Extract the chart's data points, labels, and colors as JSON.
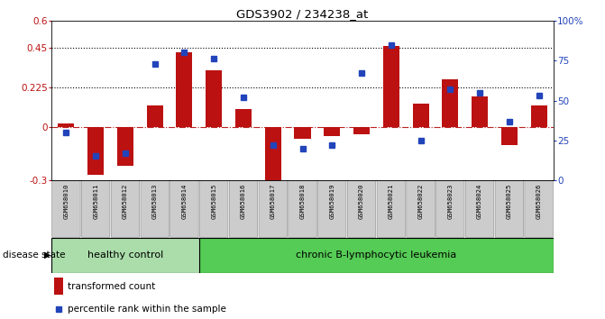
{
  "title": "GDS3902 / 234238_at",
  "samples": [
    "GSM658010",
    "GSM658011",
    "GSM658012",
    "GSM658013",
    "GSM658014",
    "GSM658015",
    "GSM658016",
    "GSM658017",
    "GSM658018",
    "GSM658019",
    "GSM658020",
    "GSM658021",
    "GSM658022",
    "GSM658023",
    "GSM658024",
    "GSM658025",
    "GSM658026"
  ],
  "transformed_count": [
    0.02,
    -0.27,
    -0.22,
    0.12,
    0.42,
    0.32,
    0.1,
    -0.3,
    -0.065,
    -0.05,
    -0.04,
    0.46,
    0.13,
    0.27,
    0.175,
    -0.1,
    0.12
  ],
  "percentile_rank": [
    30,
    15,
    17,
    73,
    80,
    76,
    52,
    22,
    20,
    22,
    67,
    85,
    25,
    57,
    55,
    37,
    53
  ],
  "ylim_left": [
    -0.3,
    0.6
  ],
  "yticks_left": [
    -0.3,
    0.0,
    0.225,
    0.45,
    0.6
  ],
  "ytick_labels_left": [
    "-0.3",
    "0",
    "0.225",
    "0.45",
    "0.6"
  ],
  "ylim_right": [
    0,
    100
  ],
  "yticks_right": [
    0,
    25,
    50,
    75,
    100
  ],
  "ytick_labels_right": [
    "0",
    "25",
    "50",
    "75",
    "100%"
  ],
  "hlines": [
    0.225,
    0.45
  ],
  "bar_color": "#BB1111",
  "scatter_color": "#2244BB",
  "zero_line_color": "#BB2222",
  "healthy_count": 5,
  "healthy_bg_color": "#aaddaa",
  "leukemia_bg_color": "#55cc55",
  "xtick_bg_color": "#cccccc",
  "healthy_control_label": "healthy control",
  "leukemia_label": "chronic B-lymphocytic leukemia",
  "disease_state_label": "disease state",
  "legend_bar_label": "transformed count",
  "legend_scatter_label": "percentile rank within the sample"
}
